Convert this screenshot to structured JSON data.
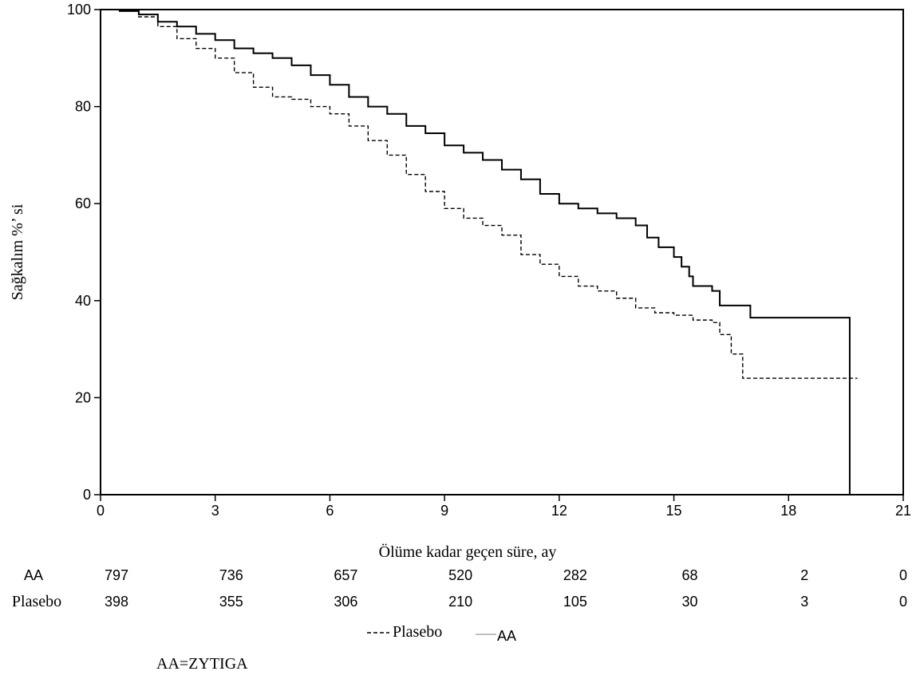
{
  "chart_data": {
    "type": "line",
    "title": "",
    "xlabel": "Ölüme kadar geçen süre, ay",
    "ylabel": "Sağkalım %’ si",
    "xlim": [
      0,
      21
    ],
    "ylim": [
      0,
      100
    ],
    "xticks": [
      0,
      3,
      6,
      9,
      12,
      15,
      18,
      21
    ],
    "yticks": [
      0,
      20,
      40,
      60,
      80,
      100
    ],
    "grid": false,
    "series": [
      {
        "name": "AA",
        "style": "solid",
        "color": "#000000",
        "points": [
          [
            0,
            100
          ],
          [
            0.5,
            99.7
          ],
          [
            1,
            99
          ],
          [
            1.5,
            97.5
          ],
          [
            2,
            96.5
          ],
          [
            2.5,
            95
          ],
          [
            3,
            93.7
          ],
          [
            3.5,
            92
          ],
          [
            4,
            91
          ],
          [
            4.5,
            90
          ],
          [
            5,
            88.5
          ],
          [
            5.5,
            86.5
          ],
          [
            6,
            84.5
          ],
          [
            6.5,
            82
          ],
          [
            7,
            80
          ],
          [
            7.5,
            78.5
          ],
          [
            8,
            76
          ],
          [
            8.5,
            74.5
          ],
          [
            9,
            72
          ],
          [
            9.5,
            70.5
          ],
          [
            10,
            69
          ],
          [
            10.5,
            67
          ],
          [
            11,
            65
          ],
          [
            11.5,
            62
          ],
          [
            12,
            60
          ],
          [
            12.5,
            59
          ],
          [
            13,
            58
          ],
          [
            13.5,
            57
          ],
          [
            14,
            55.5
          ],
          [
            14.3,
            53
          ],
          [
            14.6,
            51
          ],
          [
            15,
            49
          ],
          [
            15.2,
            47
          ],
          [
            15.4,
            45
          ],
          [
            15.5,
            43
          ],
          [
            16,
            42
          ],
          [
            16.2,
            39
          ],
          [
            16.5,
            39
          ],
          [
            17,
            36.5
          ],
          [
            19.6,
            36.5
          ],
          [
            19.6,
            0
          ]
        ]
      },
      {
        "name": "Plasebo",
        "style": "dashed",
        "color": "#000000",
        "points": [
          [
            0,
            100
          ],
          [
            0.5,
            99.8
          ],
          [
            1,
            98.5
          ],
          [
            1.5,
            96.5
          ],
          [
            2,
            94
          ],
          [
            2.5,
            92
          ],
          [
            3,
            90
          ],
          [
            3.5,
            87
          ],
          [
            4,
            84
          ],
          [
            4.5,
            82
          ],
          [
            5,
            81.5
          ],
          [
            5.5,
            80
          ],
          [
            6,
            78.5
          ],
          [
            6.5,
            76
          ],
          [
            7,
            73
          ],
          [
            7.5,
            70
          ],
          [
            8,
            66
          ],
          [
            8.5,
            62.5
          ],
          [
            9,
            59
          ],
          [
            9.5,
            57
          ],
          [
            10,
            55.5
          ],
          [
            10.5,
            53.5
          ],
          [
            11,
            49.5
          ],
          [
            11.5,
            47.5
          ],
          [
            12,
            45
          ],
          [
            12.5,
            43
          ],
          [
            13,
            42
          ],
          [
            13.5,
            40.5
          ],
          [
            14,
            38.5
          ],
          [
            14.5,
            37.5
          ],
          [
            15,
            37
          ],
          [
            15.5,
            36
          ],
          [
            16,
            35.5
          ],
          [
            16.2,
            33
          ],
          [
            16.5,
            29
          ],
          [
            16.8,
            24
          ],
          [
            19.8,
            24
          ]
        ]
      }
    ],
    "risk_table": {
      "times": [
        0,
        3,
        6,
        9,
        12,
        15,
        18,
        21
      ],
      "rows": [
        {
          "label": "AA",
          "values": [
            "797",
            "736",
            "657",
            "520",
            "282",
            "68",
            "2",
            "0"
          ]
        },
        {
          "label": "Plasebo",
          "values": [
            "398",
            "355",
            "306",
            "210",
            "105",
            "30",
            "3",
            "0"
          ]
        }
      ]
    },
    "legend": {
      "placement": "bottom",
      "items": [
        {
          "label": "Plasebo",
          "style": "dashed"
        },
        {
          "label": "AA",
          "style": "solid"
        }
      ]
    },
    "footnote": "AA=ZYTIGA"
  }
}
